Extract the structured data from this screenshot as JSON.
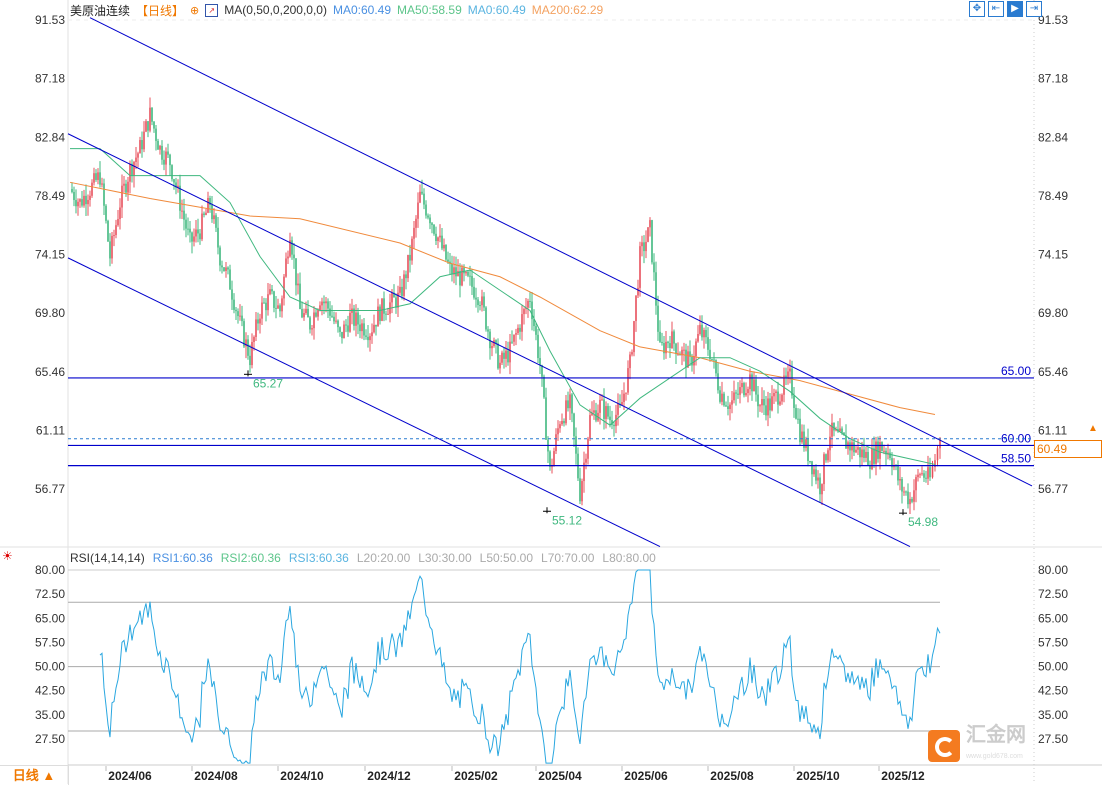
{
  "header": {
    "title": "美原油连续",
    "period": "【日线】",
    "indicator": "MA(0,50,0,200,0,0)",
    "ma0": "MA0:60.49",
    "ma50": "MA50:58.59",
    "ma0b": "MA0:60.49",
    "ma200": "MA200:62.29"
  },
  "rsi_header": {
    "name": "RSI(14,14,14)",
    "rsi1": "RSI1:60.36",
    "rsi2": "RSI2:60.36",
    "rsi3": "RSI3:60.36",
    "l20": "L20:20.00",
    "l30": "L30:30.00",
    "l50": "L50:50.00",
    "l70": "L70:70.00",
    "l80": "L80:80.00"
  },
  "period_button": "日线 ▲",
  "current_price": "60.49",
  "logo": {
    "name": "汇金网",
    "url": "www.gold678.com"
  },
  "colors": {
    "up": "#e8505b",
    "down": "#3fb87f",
    "ma50": "#3fb87f",
    "ma200": "#f08a3c",
    "trend": "#0000cc",
    "rsi": "#2aa7e0",
    "accent": "#f07800"
  },
  "chart_data": {
    "type": "candlestick",
    "title": "美原油连续 日线",
    "x_ticks": [
      "2024/06",
      "2024/08",
      "2024/10",
      "2024/12",
      "2025/02",
      "2025/04",
      "2025/06",
      "2025/08",
      "2025/10",
      "2025/12"
    ],
    "x_tick_index": [
      6,
      14.6,
      23.2,
      31.9,
      40.6,
      49,
      57.6,
      66.2,
      74.8,
      83.3
    ],
    "y_ticks": [
      "91.53",
      "87.18",
      "82.84",
      "78.49",
      "74.15",
      "69.80",
      "65.46",
      "61.11",
      "56.77"
    ],
    "ylim": [
      56.77,
      91.53
    ],
    "weekly_close": [
      79,
      78,
      79,
      80,
      74,
      78,
      80.5,
      82,
      84.5,
      82,
      81,
      78,
      75,
      76,
      78,
      74,
      72,
      69,
      66.5,
      70,
      71,
      70,
      76,
      70,
      69,
      71,
      70,
      68,
      69.5,
      69,
      68.5,
      70,
      70.5,
      71,
      74,
      78.5,
      77,
      75,
      73,
      72.5,
      72,
      71,
      68,
      66,
      67,
      69,
      71,
      66,
      58,
      62,
      63,
      56.5,
      62,
      63,
      62,
      62.5,
      66,
      74,
      76,
      67,
      68,
      67,
      66,
      68.5,
      67,
      64,
      63,
      64,
      65,
      63,
      63,
      64,
      65,
      61,
      59,
      57,
      61,
      60.5,
      60,
      59.5,
      59,
      60,
      59.5,
      57,
      56,
      58,
      57.5,
      60.49
    ],
    "ma50": [
      [
        0,
        82
      ],
      [
        3,
        82
      ],
      [
        6,
        80
      ],
      [
        9,
        80
      ],
      [
        13,
        80
      ],
      [
        16,
        78
      ],
      [
        19,
        74
      ],
      [
        22,
        71
      ],
      [
        25,
        70
      ],
      [
        28,
        70
      ],
      [
        31,
        70
      ],
      [
        34,
        70.5
      ],
      [
        37,
        72.5
      ],
      [
        40,
        73
      ],
      [
        43,
        71.5
      ],
      [
        46,
        70
      ],
      [
        48,
        67
      ],
      [
        51,
        63
      ],
      [
        54,
        61.5
      ],
      [
        57,
        63.5
      ],
      [
        60,
        65
      ],
      [
        63,
        66.5
      ],
      [
        66,
        66.5
      ],
      [
        69,
        65.5
      ],
      [
        72,
        64
      ],
      [
        75,
        62
      ],
      [
        78,
        60.5
      ],
      [
        81,
        59.5
      ],
      [
        84,
        59
      ],
      [
        86.5,
        58.59
      ]
    ],
    "ma200": [
      [
        0,
        79.5
      ],
      [
        8,
        78.3
      ],
      [
        18,
        77
      ],
      [
        23,
        76.8
      ],
      [
        33,
        75
      ],
      [
        38,
        73.5
      ],
      [
        43,
        72.5
      ],
      [
        47,
        71
      ],
      [
        53,
        68.5
      ],
      [
        57,
        67.3
      ],
      [
        63,
        66.5
      ],
      [
        68,
        65.5
      ],
      [
        73,
        64.8
      ],
      [
        78,
        63.8
      ],
      [
        83,
        62.8
      ],
      [
        86.5,
        62.29
      ]
    ],
    "trend_lines": [
      {
        "from": [
          2,
          91.7
        ],
        "to": [
          96.2,
          57.0
        ]
      },
      {
        "from": [
          -0.2,
          83.1
        ],
        "to": [
          84,
          52.5
        ]
      },
      {
        "from": [
          -0.2,
          73.9
        ],
        "to": [
          59,
          52.5
        ]
      }
    ],
    "horizontal_levels": [
      {
        "value": 65.0,
        "label": "65.00"
      },
      {
        "value": 60.0,
        "label": "60.00"
      },
      {
        "value": 58.5,
        "label": "58.50"
      }
    ],
    "annotations": [
      {
        "index": 17.8,
        "value": 65.27,
        "label": "65.27"
      },
      {
        "index": 47.7,
        "value": 55.12,
        "label": "55.12"
      },
      {
        "index": 83.3,
        "value": 54.98,
        "label": "54.98"
      }
    ],
    "rsi": {
      "period": 14,
      "last": 60.36,
      "y_ticks": [
        "80.00",
        "72.50",
        "65.00",
        "57.50",
        "50.00",
        "42.50",
        "35.00",
        "27.50"
      ],
      "levels": [
        20,
        30,
        50,
        70,
        80
      ],
      "ylim": [
        20,
        80
      ]
    }
  }
}
